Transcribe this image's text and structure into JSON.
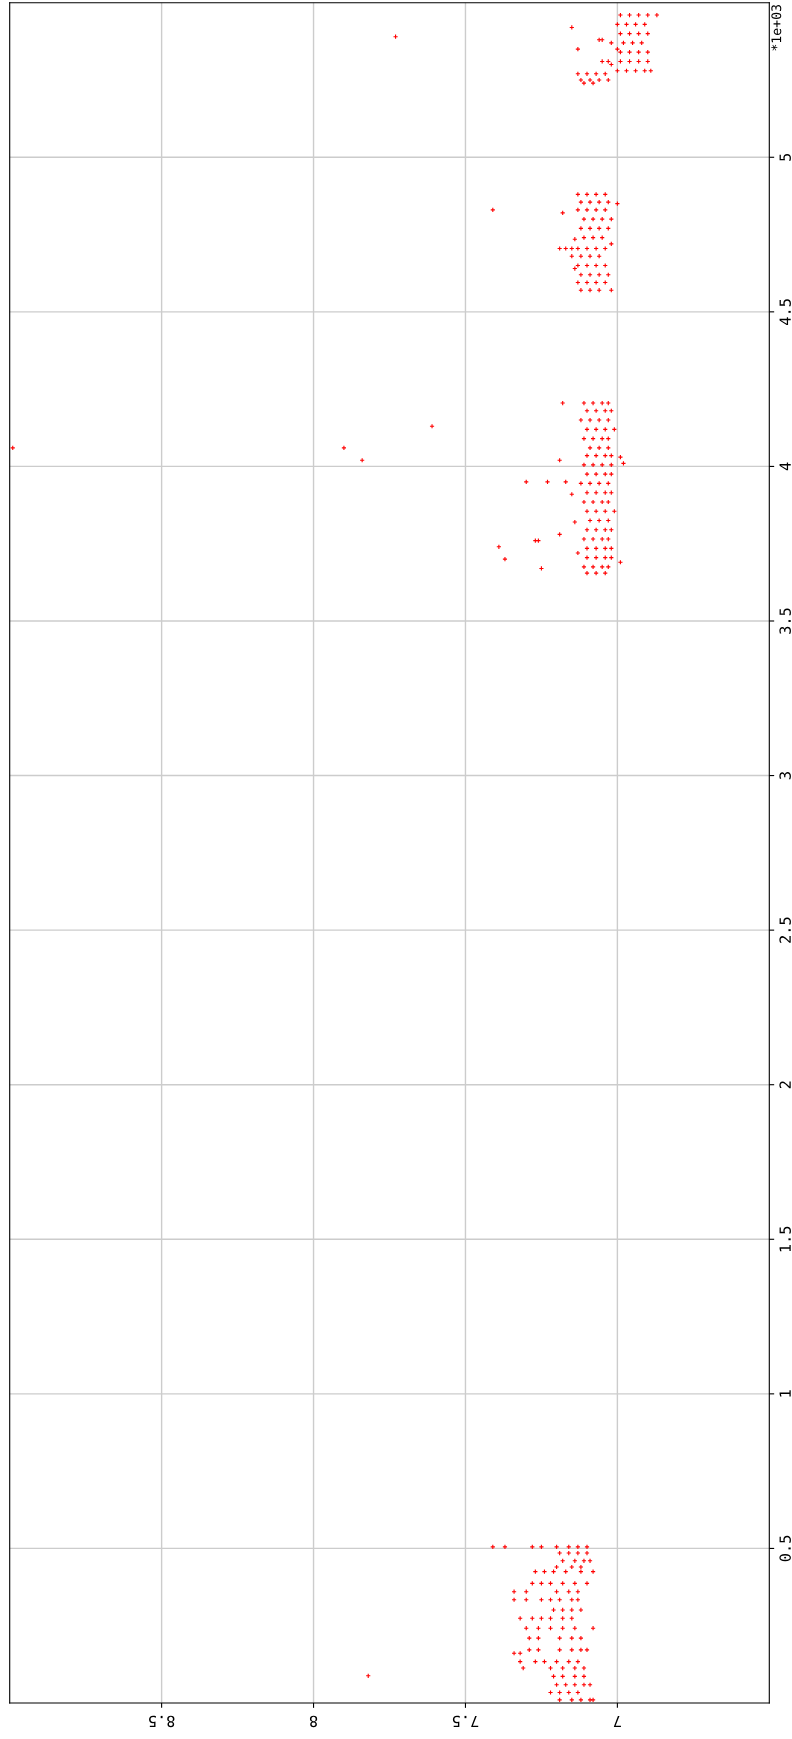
{
  "chart_data": {
    "type": "scatter",
    "xlim": [
      9,
      6.5
    ],
    "xticks": [
      7,
      7.5,
      8,
      8.5
    ],
    "ylim": [
      0,
      5.5
    ],
    "yticks": [
      0.5,
      1,
      1.5,
      2,
      2.5,
      3,
      3.5,
      4,
      4.5,
      5
    ],
    "annotations": [
      "*1e+03"
    ],
    "grid": true,
    "marker": "cross",
    "series": [
      {
        "color": "#ff0000",
        "x": [
          7.41,
          7.37,
          7.28,
          7.25,
          7.2,
          7.16,
          7.13,
          7.1,
          7.19,
          7.16,
          7.13,
          7.1,
          7.18,
          7.14,
          7.11,
          7.09,
          7.2,
          7.15,
          7.12,
          7.27,
          7.24,
          7.21,
          7.17,
          7.12,
          7.08,
          7.28,
          7.25,
          7.22,
          7.18,
          7.14,
          7.1,
          7.34,
          7.3,
          7.2,
          7.16,
          7.13,
          7.34,
          7.3,
          7.25,
          7.22,
          7.19,
          7.15,
          7.13,
          7.21,
          7.18,
          7.15,
          7.12,
          7.32,
          7.28,
          7.25,
          7.22,
          7.18,
          7.15,
          7.3,
          7.26,
          7.22,
          7.18,
          7.14,
          7.08,
          7.29,
          7.26,
          7.19,
          7.15,
          7.12,
          7.29,
          7.26,
          7.19,
          7.15,
          7.12,
          7.1,
          7.34,
          7.32,
          7.32,
          7.27,
          7.24,
          7.2,
          7.16,
          7.13,
          7.31,
          7.22,
          7.18,
          7.14,
          7.11,
          7.21,
          7.18,
          7.14,
          7.11,
          7.2,
          7.17,
          7.14,
          7.11,
          7.09,
          7.22,
          7.19,
          7.16,
          7.13,
          7.19,
          7.15,
          7.12,
          7.09,
          7.08,
          7.82
        ],
        "values": [
          0.505,
          0.505,
          0.505,
          0.505,
          0.505,
          0.505,
          0.505,
          0.505,
          0.485,
          0.485,
          0.485,
          0.485,
          0.46,
          0.46,
          0.46,
          0.46,
          0.44,
          0.44,
          0.44,
          0.425,
          0.425,
          0.425,
          0.425,
          0.425,
          0.425,
          0.387,
          0.387,
          0.387,
          0.387,
          0.387,
          0.387,
          0.36,
          0.36,
          0.36,
          0.36,
          0.36,
          0.334,
          0.334,
          0.334,
          0.334,
          0.334,
          0.334,
          0.334,
          0.301,
          0.301,
          0.301,
          0.301,
          0.274,
          0.274,
          0.274,
          0.274,
          0.274,
          0.274,
          0.242,
          0.242,
          0.242,
          0.242,
          0.242,
          0.242,
          0.21,
          0.21,
          0.21,
          0.21,
          0.21,
          0.172,
          0.172,
          0.172,
          0.172,
          0.172,
          0.172,
          0.161,
          0.161,
          0.134,
          0.134,
          0.134,
          0.134,
          0.134,
          0.134,
          0.113,
          0.113,
          0.113,
          0.113,
          0.113,
          0.086,
          0.086,
          0.086,
          0.086,
          0.059,
          0.059,
          0.059,
          0.059,
          0.059,
          0.034,
          0.034,
          0.034,
          0.034,
          0.01,
          0.01,
          0.01,
          0.01,
          0.01,
          0.088
        ]
      },
      {
        "color": "#ff0000",
        "x": [
          7.18,
          7.11,
          7.08,
          7.05,
          7.03,
          7.1,
          7.07,
          7.04,
          7.02,
          7.12,
          7.09,
          7.06,
          7.03,
          7.1,
          7.07,
          7.04,
          7.01,
          7.11,
          7.08,
          7.05,
          7.03,
          7.09,
          7.06,
          7.03,
          7.1,
          7.07,
          7.04,
          7.02,
          7.11,
          7.08,
          7.05,
          7.02,
          7.1,
          7.07,
          7.04,
          7.02,
          7.12,
          7.09,
          7.06,
          7.03,
          7.1,
          7.07,
          7.04,
          7.02,
          7.11,
          7.08,
          7.05,
          7.03,
          7.1,
          7.07,
          7.04,
          7.01,
          7.09,
          7.06,
          7.03,
          7.1,
          7.07,
          7.04,
          7.02,
          7.11,
          7.08,
          7.05,
          7.03,
          7.1,
          7.07,
          7.04,
          7.02,
          7.1,
          7.07,
          7.04,
          7.02,
          7.11,
          7.08,
          7.05,
          7.03,
          7.1,
          7.07,
          7.04,
          7.19,
          7.3,
          7.23,
          7.17,
          7.15,
          7.39,
          7.27,
          7.26,
          7.37,
          7.25,
          7.19,
          7.14,
          7.13,
          6.98,
          6.99,
          6.99,
          7.73,
          8.99,
          7.9,
          7.84,
          7.61
        ],
        "values": [
          4.205,
          4.205,
          4.205,
          4.205,
          4.205,
          4.18,
          4.18,
          4.18,
          4.18,
          4.15,
          4.15,
          4.15,
          4.15,
          4.12,
          4.12,
          4.12,
          4.12,
          4.09,
          4.09,
          4.09,
          4.09,
          4.06,
          4.06,
          4.06,
          4.035,
          4.035,
          4.035,
          4.035,
          4.005,
          4.005,
          4.005,
          4.005,
          3.975,
          3.975,
          3.975,
          3.975,
          3.945,
          3.945,
          3.945,
          3.945,
          3.915,
          3.915,
          3.915,
          3.915,
          3.885,
          3.885,
          3.885,
          3.885,
          3.855,
          3.855,
          3.855,
          3.855,
          3.825,
          3.825,
          3.825,
          3.795,
          3.795,
          3.795,
          3.795,
          3.765,
          3.765,
          3.765,
          3.765,
          3.735,
          3.735,
          3.735,
          3.735,
          3.705,
          3.705,
          3.705,
          3.705,
          3.675,
          3.675,
          3.675,
          3.675,
          3.655,
          3.655,
          3.655,
          4.02,
          3.95,
          3.95,
          3.95,
          3.91,
          3.74,
          3.76,
          3.76,
          3.7,
          3.67,
          3.78,
          3.82,
          3.72,
          4.01,
          4.03,
          3.69,
          5.39,
          4.06,
          4.06,
          4.02,
          4.13
        ]
      },
      {
        "color": "#ff0000",
        "x": [
          7.13,
          7.1,
          7.07,
          7.04,
          7.12,
          7.09,
          7.06,
          7.03,
          7.13,
          7.1,
          7.07,
          7.04,
          7.11,
          7.08,
          7.05,
          7.02,
          7.12,
          7.09,
          7.06,
          7.03,
          7.11,
          7.08,
          7.05,
          7.19,
          7.17,
          7.15,
          7.13,
          7.1,
          7.07,
          7.04,
          7.12,
          7.09,
          7.06,
          7.13,
          7.1,
          7.07,
          7.04,
          7.12,
          7.09,
          7.06,
          7.03,
          7.13,
          7.1,
          7.07,
          7.04,
          7.12,
          7.09,
          7.06,
          7.02,
          7.41,
          7.18,
          7.0,
          7.02,
          7.14,
          7.15,
          7.14
        ],
        "values": [
          4.88,
          4.88,
          4.88,
          4.88,
          4.855,
          4.855,
          4.855,
          4.855,
          4.83,
          4.83,
          4.83,
          4.83,
          4.8,
          4.8,
          4.8,
          4.8,
          4.77,
          4.77,
          4.77,
          4.77,
          4.74,
          4.74,
          4.74,
          4.705,
          4.705,
          4.705,
          4.705,
          4.705,
          4.705,
          4.705,
          4.68,
          4.68,
          4.68,
          4.65,
          4.65,
          4.65,
          4.65,
          4.62,
          4.62,
          4.62,
          4.62,
          4.595,
          4.595,
          4.595,
          4.595,
          4.57,
          4.57,
          4.57,
          4.57,
          4.83,
          4.82,
          4.85,
          4.72,
          4.735,
          4.68,
          4.64
        ]
      },
      {
        "color": "#ff0000",
        "x": [
          7.13,
          7.1,
          7.07,
          7.04,
          7.12,
          7.09,
          7.06,
          7.03,
          7.11,
          7.08,
          6.99,
          6.96,
          6.93,
          6.9,
          6.87,
          7.0,
          6.97,
          6.94,
          6.91,
          6.99,
          6.96,
          6.93,
          6.9,
          6.98,
          6.95,
          6.92,
          6.99,
          6.96,
          6.93,
          6.9,
          6.99,
          6.96,
          6.93,
          6.9,
          7.0,
          6.97,
          6.94,
          6.91,
          6.89,
          7.15,
          7.13,
          7.06,
          7.05,
          7.02,
          7.0,
          7.05,
          7.03,
          7.02
        ],
        "values": [
          5.27,
          5.27,
          5.27,
          5.27,
          5.25,
          5.25,
          5.25,
          5.25,
          5.24,
          5.24,
          5.46,
          5.46,
          5.46,
          5.46,
          5.46,
          5.43,
          5.43,
          5.43,
          5.43,
          5.4,
          5.4,
          5.4,
          5.4,
          5.37,
          5.37,
          5.37,
          5.34,
          5.34,
          5.34,
          5.34,
          5.31,
          5.31,
          5.31,
          5.31,
          5.28,
          5.28,
          5.28,
          5.28,
          5.28,
          5.42,
          5.35,
          5.38,
          5.38,
          5.37,
          5.35,
          5.31,
          5.31,
          5.3
        ]
      }
    ]
  }
}
